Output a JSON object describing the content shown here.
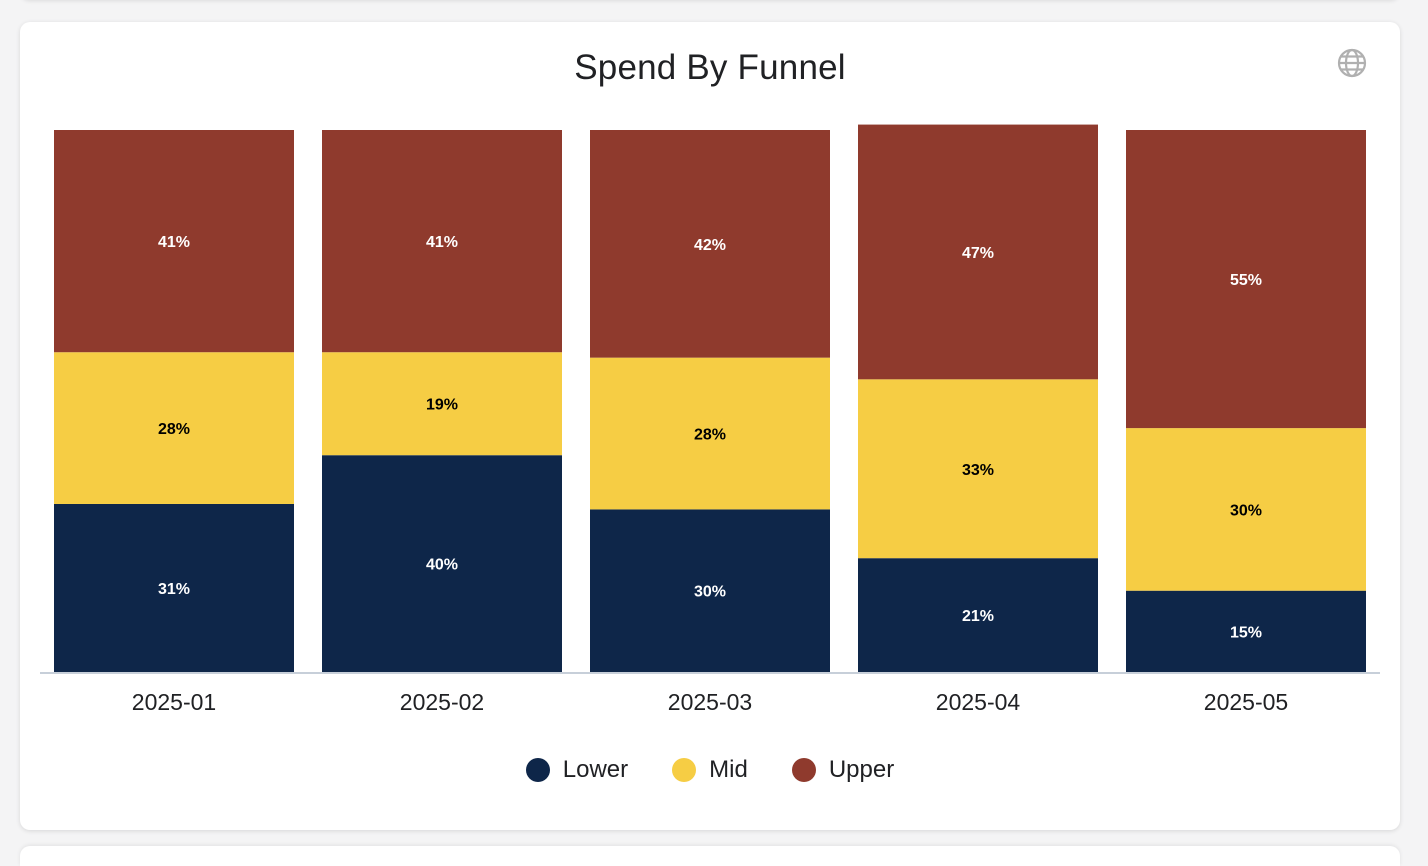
{
  "chart_data": {
    "type": "bar",
    "stacked": true,
    "normalized": true,
    "title": "Spend By Funnel",
    "categories": [
      "2025-01",
      "2025-02",
      "2025-03",
      "2025-04",
      "2025-05"
    ],
    "series": [
      {
        "name": "Lower",
        "color": "#0e2649",
        "label_color": "#ffffff",
        "values": [
          31,
          40,
          30,
          21,
          15
        ]
      },
      {
        "name": "Mid",
        "color": "#f6cd44",
        "label_color": "#000000",
        "values": [
          28,
          19,
          28,
          33,
          30
        ]
      },
      {
        "name": "Upper",
        "color": "#8f3a2d",
        "label_color": "#ffffff",
        "values": [
          41,
          41,
          42,
          47,
          55
        ]
      }
    ],
    "value_format": "percent",
    "ylim": [
      0,
      100
    ],
    "grid": false,
    "legend_position": "bottom"
  },
  "icons": {
    "globe": "globe-icon"
  }
}
